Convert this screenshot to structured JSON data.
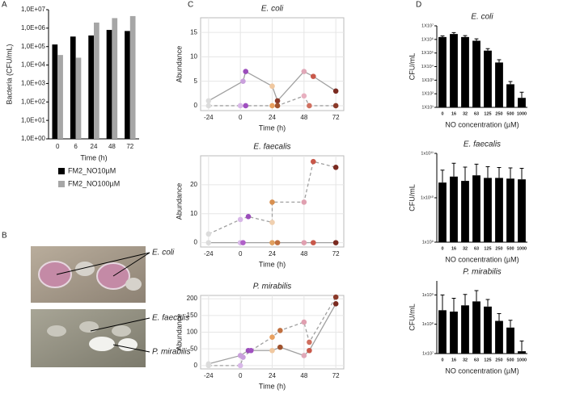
{
  "panel_labels": [
    "A",
    "B",
    "C",
    "D"
  ],
  "photo": {
    "labels": [
      "E. coli",
      "E. faecalis",
      "P. mirabilis"
    ]
  },
  "chart_data": [
    {
      "type": "bar",
      "log_scale": true,
      "ylabel": "Bacteria (CFU/mL)",
      "xlabel": "Time (h)",
      "categories": [
        "0",
        "6",
        "24",
        "48",
        "72"
      ],
      "series": [
        {
          "name": "FM2_NO10µM",
          "color": "#000000",
          "values": [
            130000,
            350000,
            400000,
            800000,
            700000
          ]
        },
        {
          "name": "FM2_NO100µM",
          "color": "#a6a6a6",
          "values": [
            35000,
            25000,
            2000000,
            3500000,
            4500000
          ]
        }
      ],
      "ylim": [
        1,
        10000000
      ],
      "yticks": [
        {
          "value": 1,
          "label": "1,0E+00"
        },
        {
          "value": 10,
          "label": "1,0E+01"
        },
        {
          "value": 100,
          "label": "1,0E+02"
        },
        {
          "value": 1000,
          "label": "1,0E+03"
        },
        {
          "value": 10000,
          "label": "1,0E+04"
        },
        {
          "value": 100000,
          "label": "1,0E+05"
        },
        {
          "value": 1000000,
          "label": "1,0E+06"
        },
        {
          "value": 10000000,
          "label": "1,0E+07"
        }
      ],
      "legend": "bottom",
      "grid": false
    },
    {
      "type": "line",
      "title": "E. coli",
      "ylabel": "Abundance",
      "xlabel": "Time (h)",
      "grid": true,
      "xlim": [
        -30,
        78
      ],
      "xticks": [
        -24,
        0,
        24,
        48,
        72
      ],
      "ylim": [
        -1,
        18
      ],
      "yticks": [
        0,
        5,
        10,
        15
      ],
      "series": [
        {
          "line_style": "solid",
          "color": "#a0a0a0",
          "x": [
            -24,
            2,
            4,
            24,
            28,
            48,
            55,
            72
          ],
          "values": [
            1,
            5,
            7,
            4,
            1,
            7,
            6,
            3
          ],
          "point_colors": [
            "#dcdcdc",
            "#c9a0dc",
            "#9b4dbb",
            "#f0c8a0",
            "#8b3a2a",
            "#e0a8b8",
            "#c8584a",
            "#7a2a20"
          ]
        },
        {
          "line_style": "dashed",
          "color": "#a0a0a0",
          "x": [
            -24,
            0,
            4,
            24,
            28,
            48,
            52,
            72
          ],
          "values": [
            0,
            0,
            0,
            0,
            0,
            2,
            0,
            0
          ],
          "point_colors": [
            "#dcdcdc",
            "#d8b8e8",
            "#a050c0",
            "#e8a060",
            "#a0522d",
            "#e8b0c0",
            "#d07060",
            "#8b3a2a"
          ]
        }
      ]
    },
    {
      "type": "line",
      "title": "E. faecalis",
      "ylabel": "Abundance",
      "xlabel": "Time (h)",
      "grid": true,
      "xlim": [
        -30,
        78
      ],
      "xticks": [
        -24,
        0,
        24,
        48,
        72
      ],
      "ylim": [
        -1.5,
        30
      ],
      "yticks": [
        0,
        10,
        20
      ],
      "series": [
        {
          "line_style": "solid",
          "color": "#a0a0a0",
          "x": [
            -24,
            0,
            2,
            24,
            28,
            48,
            55,
            72
          ],
          "values": [
            0,
            0,
            0,
            0,
            0,
            0,
            0,
            0
          ],
          "point_colors": [
            "#dcdcdc",
            "#d8b8e8",
            "#b060c8",
            "#e0a060",
            "#c07040",
            "#e0a0b0",
            "#c8584a",
            "#7a2a20"
          ]
        },
        {
          "line_style": "dashed",
          "color": "#a0a0a0",
          "x": [
            -24,
            0,
            6,
            24,
            24,
            48,
            55,
            72
          ],
          "values": [
            3,
            8,
            9,
            7,
            14,
            14,
            28,
            26
          ],
          "point_colors": [
            "#dcdcdc",
            "#d8b8e8",
            "#9b4dbb",
            "#f0d0b0",
            "#d89050",
            "#e0a0b0",
            "#c8584a",
            "#7a2a20"
          ]
        }
      ]
    },
    {
      "type": "line",
      "title": "P. mirabilis",
      "ylabel": "Abundance",
      "xlabel": "Time (h)",
      "grid": true,
      "xlim": [
        -30,
        78
      ],
      "xticks": [
        -24,
        0,
        24,
        48,
        72
      ],
      "ylim": [
        -10,
        210
      ],
      "yticks": [
        0,
        50,
        100,
        150,
        200
      ],
      "series": [
        {
          "line_style": "solid",
          "color": "#a0a0a0",
          "x": [
            -24,
            0,
            6,
            24,
            30,
            48,
            52,
            72
          ],
          "values": [
            5,
            30,
            45,
            45,
            55,
            30,
            45,
            185
          ],
          "point_colors": [
            "#dcdcdc",
            "#c9a0dc",
            "#9b4dbb",
            "#f0c8a0",
            "#a0522d",
            "#e0a8b8",
            "#c8584a",
            "#7a2a20"
          ]
        },
        {
          "line_style": "dashed",
          "color": "#a0a0a0",
          "x": [
            -24,
            0,
            2,
            8,
            24,
            30,
            48,
            52,
            72
          ],
          "values": [
            0,
            0,
            25,
            45,
            85,
            105,
            130,
            70,
            205
          ],
          "point_colors": [
            "#dcdcdc",
            "#d8b8e8",
            "#c9a0dc",
            "#a050c0",
            "#e8a060",
            "#c07040",
            "#e0a0b0",
            "#d07060",
            "#8b3a2a"
          ]
        }
      ]
    },
    {
      "type": "bar",
      "log_scale": true,
      "title": "E. coli",
      "ylabel": "CFU/mL",
      "xlabel": "NO concentration (µM)",
      "categories": [
        "0",
        "16",
        "32",
        "63",
        "125",
        "250",
        "500",
        "1000"
      ],
      "category_colors": [
        "#000000",
        "#e02020",
        "#000000",
        "#000000",
        "#e02020",
        "#000000",
        "#000000",
        "#000000"
      ],
      "series": [
        {
          "color": "#000000",
          "values": [
            1500000,
            2500000,
            1500000,
            800000,
            150000,
            20000,
            500,
            50
          ],
          "errors": [
            300000,
            700000,
            400000,
            300000,
            60000,
            12000,
            300,
            80
          ]
        }
      ],
      "ylim": [
        10,
        10000000
      ],
      "yticks": [
        {
          "value": 10,
          "label": "1X10¹"
        },
        {
          "value": 100,
          "label": "1X10²"
        },
        {
          "value": 1000,
          "label": "1X10³"
        },
        {
          "value": 10000,
          "label": "1X10⁴"
        },
        {
          "value": 100000,
          "label": "1X10⁵"
        },
        {
          "value": 1000000,
          "label": "1X10⁶"
        },
        {
          "value": 10000000,
          "label": "1X10⁷"
        }
      ]
    },
    {
      "type": "bar",
      "log_scale": true,
      "title": "E. faecalis",
      "ylabel": "CFU/mL",
      "xlabel": "NO concentration (µM)",
      "categories": [
        "0",
        "16",
        "32",
        "63",
        "125",
        "250",
        "500",
        "1000"
      ],
      "category_colors": [
        "#000000",
        "#e02020",
        "#000000",
        "#000000",
        "#e02020",
        "#000000",
        "#000000",
        "#000000"
      ],
      "series": [
        {
          "color": "#000000",
          "values": [
            22000000000,
            30000000000,
            24000000000,
            32000000000,
            28000000000,
            28000000000,
            27000000000,
            26000000000
          ],
          "errors": [
            20000000000,
            30000000000,
            25000000000,
            25000000000,
            22000000000,
            20000000000,
            20000000000,
            20000000000
          ]
        }
      ],
      "ylim": [
        1000000000,
        100000000000
      ],
      "yticks": [
        {
          "value": 1000000000,
          "label": "1x10⁹"
        },
        {
          "value": 10000000000,
          "label": "1x10¹⁰"
        },
        {
          "value": 100000000000,
          "label": "1x10¹¹"
        }
      ]
    },
    {
      "type": "bar",
      "log_scale": true,
      "title": "P. mirabilis",
      "ylabel": "CFU/mL",
      "xlabel": "NO concentration (µM)",
      "categories": [
        "0",
        "16",
        "32",
        "63",
        "125",
        "250",
        "500",
        "1000"
      ],
      "category_colors": [
        "#000000",
        "#e02020",
        "#000000",
        "#000000",
        "#e02020",
        "#000000",
        "#000000",
        "#000000"
      ],
      "series": [
        {
          "color": "#000000",
          "values": [
            300000000,
            270000000,
            440000000,
            600000000,
            400000000,
            130000000,
            77000000,
            12000000
          ],
          "errors": [
            700000000,
            500000000,
            600000000,
            800000000,
            300000000,
            100000000,
            60000000,
            15000000
          ]
        }
      ],
      "ylim": [
        10000000,
        3000000000
      ],
      "yticks": [
        {
          "value": 10000000,
          "label": "1x10⁷"
        },
        {
          "value": 100000000,
          "label": "1x10⁸"
        },
        {
          "value": 1000000000,
          "label": "1x10⁹"
        }
      ]
    }
  ]
}
